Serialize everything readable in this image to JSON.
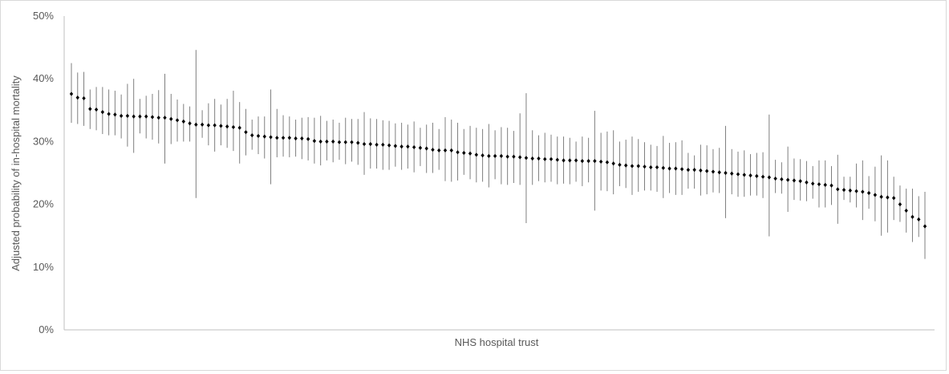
{
  "chart_data": {
    "type": "scatter",
    "title": "",
    "xlabel": "NHS hospital trust",
    "ylabel": "Adjusted probability of in-hospital mortality",
    "ylim": [
      0,
      0.5
    ],
    "y_ticks": [
      0,
      0.1,
      0.2,
      0.3,
      0.4,
      0.5
    ],
    "y_tick_labels": [
      "0%",
      "10%",
      "20%",
      "30%",
      "40%",
      "50%"
    ],
    "grid": false,
    "legend": "none",
    "colors": {
      "marker": "#000000",
      "error_bar": "#7f7f7f",
      "axis": "#bfbfbf",
      "frame": "#d9d9d9"
    },
    "series": [
      {
        "values": [
          0.376,
          0.37,
          0.369,
          0.352,
          0.351,
          0.347,
          0.344,
          0.343,
          0.341,
          0.341,
          0.34,
          0.34,
          0.34,
          0.339,
          0.338,
          0.338,
          0.336,
          0.334,
          0.332,
          0.329,
          0.327,
          0.327,
          0.326,
          0.326,
          0.325,
          0.324,
          0.323,
          0.322,
          0.315,
          0.31,
          0.309,
          0.308,
          0.307,
          0.306,
          0.306,
          0.306,
          0.305,
          0.305,
          0.304,
          0.301,
          0.3,
          0.3,
          0.3,
          0.299,
          0.299,
          0.299,
          0.298,
          0.296,
          0.296,
          0.295,
          0.295,
          0.294,
          0.293,
          0.292,
          0.292,
          0.291,
          0.29,
          0.289,
          0.287,
          0.286,
          0.286,
          0.286,
          0.283,
          0.282,
          0.281,
          0.279,
          0.278,
          0.277,
          0.277,
          0.277,
          0.276,
          0.276,
          0.275,
          0.274,
          0.273,
          0.273,
          0.272,
          0.272,
          0.271,
          0.27,
          0.27,
          0.27,
          0.269,
          0.269,
          0.269,
          0.268,
          0.267,
          0.265,
          0.263,
          0.262,
          0.261,
          0.261,
          0.26,
          0.259,
          0.259,
          0.258,
          0.257,
          0.257,
          0.256,
          0.255,
          0.255,
          0.254,
          0.253,
          0.252,
          0.251,
          0.25,
          0.249,
          0.248,
          0.247,
          0.246,
          0.245,
          0.244,
          0.243,
          0.241,
          0.24,
          0.239,
          0.238,
          0.237,
          0.235,
          0.233,
          0.232,
          0.231,
          0.23,
          0.224,
          0.223,
          0.222,
          0.221,
          0.22,
          0.218,
          0.215,
          0.212,
          0.211,
          0.21,
          0.2,
          0.19,
          0.18,
          0.176,
          0.165
        ],
        "lower": [
          0.33,
          0.328,
          0.325,
          0.32,
          0.318,
          0.312,
          0.31,
          0.31,
          0.305,
          0.292,
          0.282,
          0.313,
          0.305,
          0.303,
          0.297,
          0.265,
          0.296,
          0.3,
          0.3,
          0.3,
          0.21,
          0.306,
          0.294,
          0.284,
          0.294,
          0.29,
          0.285,
          0.265,
          0.278,
          0.287,
          0.28,
          0.273,
          0.232,
          0.275,
          0.276,
          0.275,
          0.276,
          0.272,
          0.27,
          0.265,
          0.262,
          0.27,
          0.267,
          0.271,
          0.264,
          0.268,
          0.263,
          0.247,
          0.257,
          0.257,
          0.255,
          0.255,
          0.26,
          0.255,
          0.257,
          0.251,
          0.261,
          0.25,
          0.25,
          0.255,
          0.237,
          0.236,
          0.238,
          0.247,
          0.24,
          0.235,
          0.236,
          0.227,
          0.24,
          0.232,
          0.231,
          0.234,
          0.231,
          0.17,
          0.231,
          0.237,
          0.235,
          0.236,
          0.232,
          0.233,
          0.232,
          0.236,
          0.229,
          0.235,
          0.19,
          0.222,
          0.221,
          0.216,
          0.229,
          0.226,
          0.215,
          0.22,
          0.222,
          0.222,
          0.22,
          0.21,
          0.218,
          0.215,
          0.215,
          0.225,
          0.225,
          0.214,
          0.216,
          0.219,
          0.218,
          0.178,
          0.216,
          0.212,
          0.212,
          0.214,
          0.214,
          0.21,
          0.149,
          0.218,
          0.217,
          0.188,
          0.207,
          0.206,
          0.205,
          0.209,
          0.195,
          0.195,
          0.199,
          0.169,
          0.207,
          0.203,
          0.195,
          0.175,
          0.193,
          0.173,
          0.15,
          0.155,
          0.175,
          0.172,
          0.155,
          0.14,
          0.148,
          0.113
        ],
        "upper": [
          0.425,
          0.41,
          0.411,
          0.383,
          0.387,
          0.387,
          0.383,
          0.381,
          0.375,
          0.392,
          0.4,
          0.368,
          0.373,
          0.376,
          0.382,
          0.408,
          0.376,
          0.367,
          0.36,
          0.356,
          0.446,
          0.35,
          0.361,
          0.368,
          0.359,
          0.368,
          0.381,
          0.363,
          0.352,
          0.335,
          0.34,
          0.34,
          0.383,
          0.352,
          0.342,
          0.34,
          0.335,
          0.338,
          0.339,
          0.338,
          0.341,
          0.333,
          0.335,
          0.33,
          0.338,
          0.336,
          0.336,
          0.347,
          0.337,
          0.336,
          0.334,
          0.333,
          0.329,
          0.33,
          0.327,
          0.332,
          0.322,
          0.327,
          0.33,
          0.32,
          0.339,
          0.335,
          0.33,
          0.32,
          0.325,
          0.322,
          0.32,
          0.328,
          0.318,
          0.323,
          0.322,
          0.317,
          0.345,
          0.377,
          0.318,
          0.31,
          0.314,
          0.311,
          0.308,
          0.308,
          0.306,
          0.3,
          0.308,
          0.306,
          0.349,
          0.314,
          0.316,
          0.318,
          0.3,
          0.303,
          0.308,
          0.304,
          0.299,
          0.295,
          0.293,
          0.309,
          0.298,
          0.299,
          0.302,
          0.282,
          0.278,
          0.295,
          0.294,
          0.288,
          0.29,
          0.325,
          0.288,
          0.284,
          0.286,
          0.28,
          0.282,
          0.283,
          0.343,
          0.271,
          0.267,
          0.292,
          0.273,
          0.272,
          0.269,
          0.261,
          0.27,
          0.27,
          0.261,
          0.279,
          0.244,
          0.244,
          0.265,
          0.27,
          0.245,
          0.26,
          0.278,
          0.27,
          0.244,
          0.23,
          0.225,
          0.225,
          0.213,
          0.22
        ]
      }
    ]
  }
}
